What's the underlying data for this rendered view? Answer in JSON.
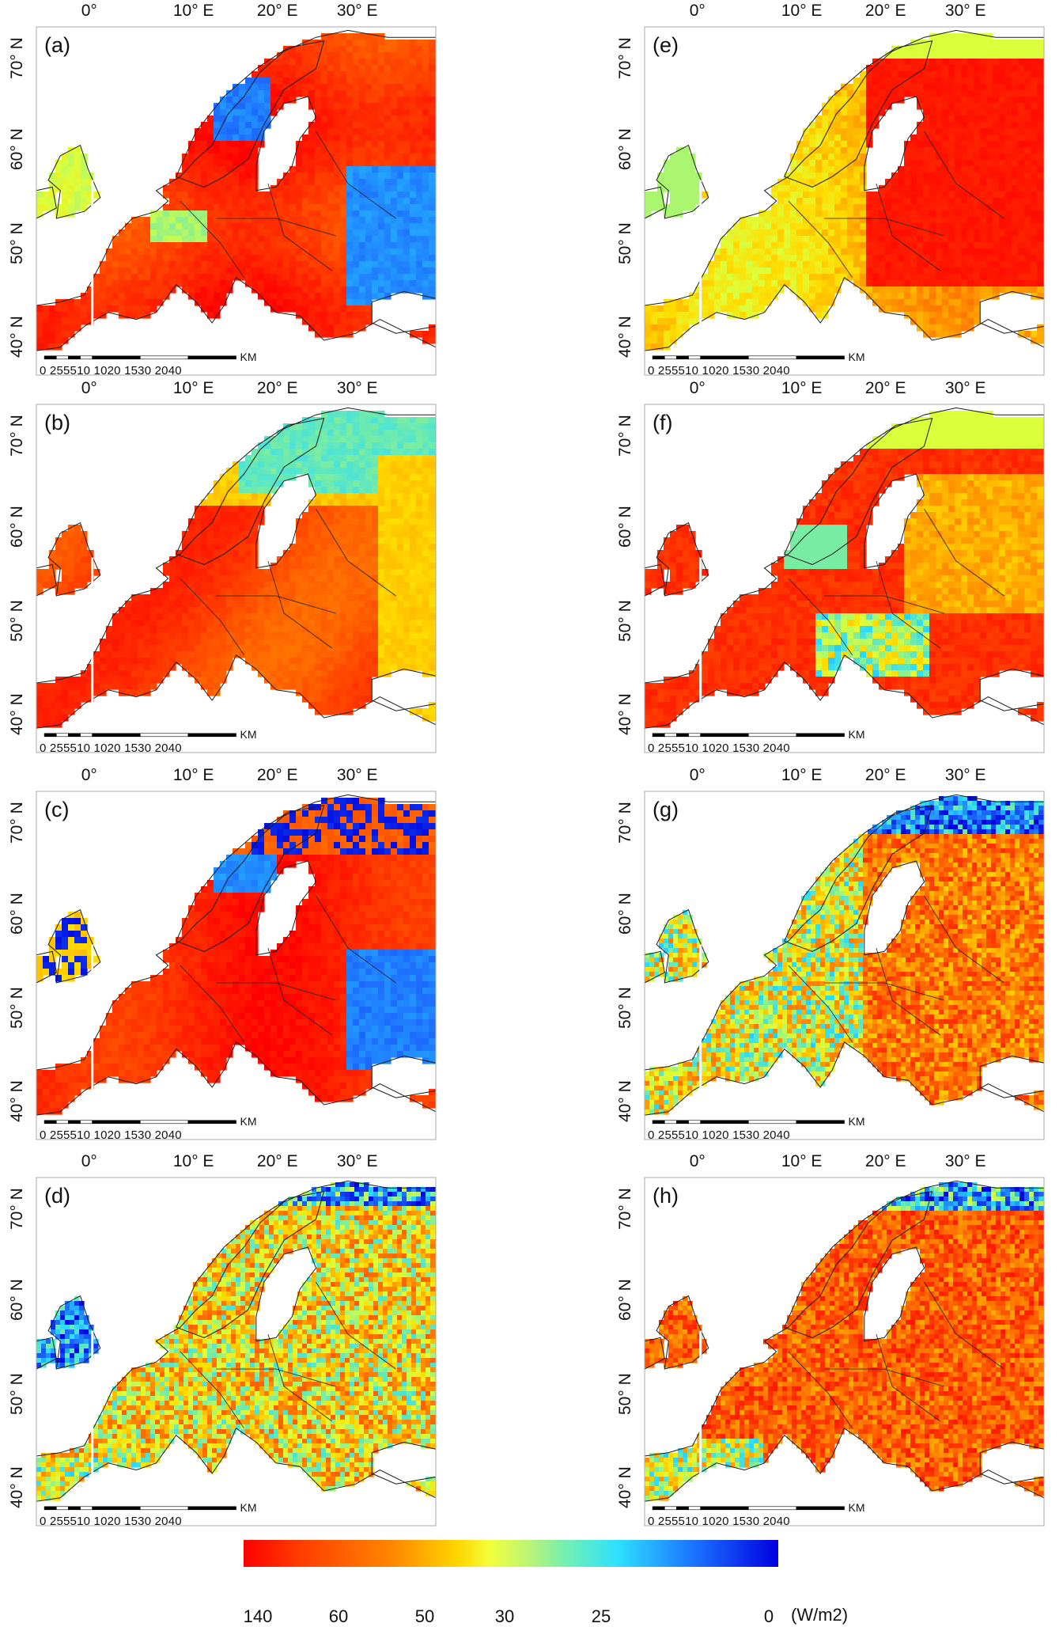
{
  "panels": [
    {
      "label": "(a)",
      "variant": "smooth-hot-west-cold-east"
    },
    {
      "label": "(b)",
      "variant": "smooth-hot"
    },
    {
      "label": "(c)",
      "variant": "smooth-hot-noisy-edges"
    },
    {
      "label": "(d)",
      "variant": "noisy-mixed"
    },
    {
      "label": "(e)",
      "variant": "smooth-warm-east"
    },
    {
      "label": "(f)",
      "variant": "smooth-hot-east"
    },
    {
      "label": "(g)",
      "variant": "noisy-hot-east"
    },
    {
      "label": "(h)",
      "variant": "noisy-very-hot"
    }
  ],
  "axes": {
    "lon_ticks": [
      "0°",
      "10° E",
      "20° E",
      "30° E"
    ],
    "lat_ticks": [
      "70° N",
      "60° N",
      "50° N",
      "40° N"
    ]
  },
  "scale_bar": {
    "text": "0  255510     1020    1530    2040",
    "unit": "KM"
  },
  "colorbar": {
    "ticks": [
      "140",
      "60",
      "50",
      "30",
      "25",
      "0"
    ],
    "unit": "(W/m2)",
    "colors": [
      "#ff0000",
      "#ff8800",
      "#f2ff3a",
      "#74f0b0",
      "#2ee0ff",
      "#0000e0"
    ]
  }
}
